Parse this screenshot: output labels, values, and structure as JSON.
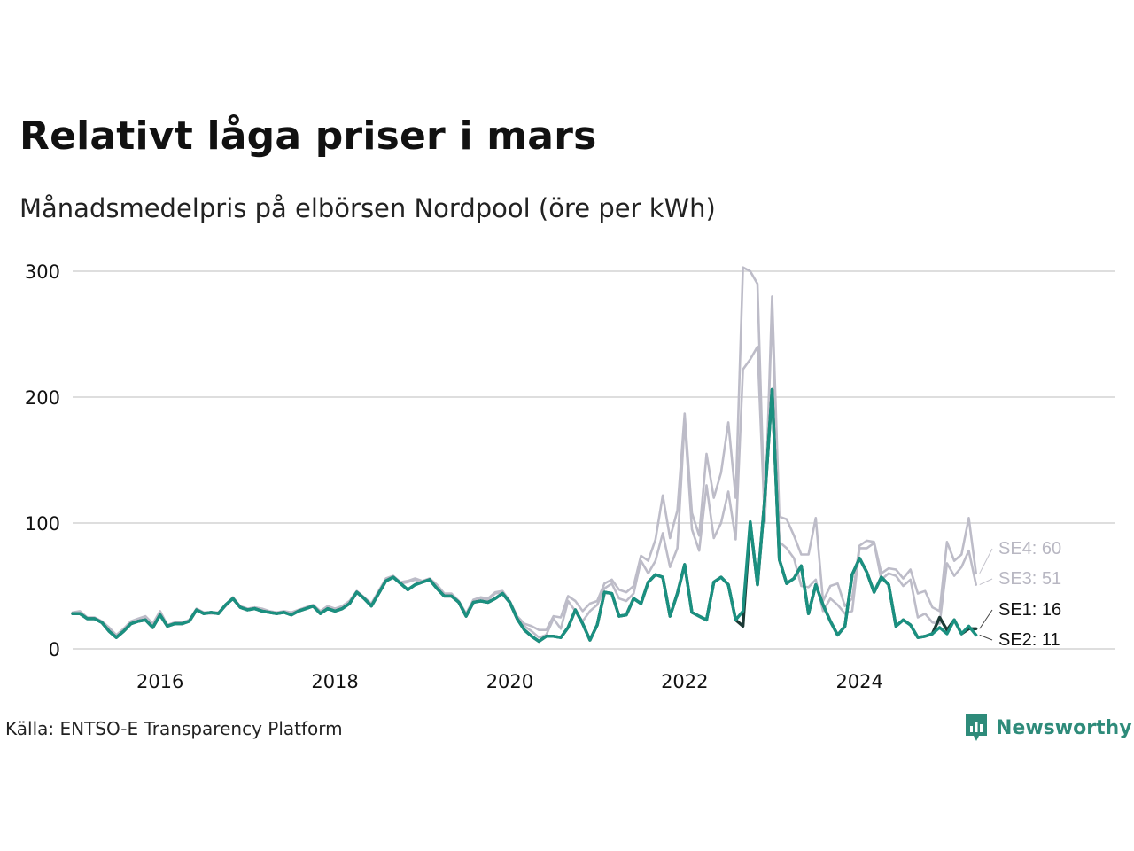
{
  "title": "Relativt låga priser i mars",
  "subtitle": "Månadsmedelpris på elbörsen Nordpool (öre per kWh)",
  "source": "Källa: ENTSO-E Transparency Platform",
  "brand": "Newsworthy",
  "colors": {
    "accent": "#1a9080",
    "dark": "#1c3a35",
    "muted": "#bdbcc8",
    "grid": "#dedede"
  },
  "chart_data": {
    "type": "line",
    "title": "Relativt låga priser i mars",
    "subtitle": "Månadsmedelpris på elbörsen Nordpool (öre per kWh)",
    "xlabel": "",
    "ylabel": "",
    "x_start": "2015-01",
    "x_end": "2025-03",
    "xlim": [
      "2015-01",
      "2026-12"
    ],
    "ylim": [
      0,
      300
    ],
    "x_ticks": [
      "2016",
      "2018",
      "2020",
      "2022",
      "2024"
    ],
    "y_ticks": [
      0,
      100,
      200,
      300
    ],
    "grid": true,
    "legend": "direct-labels-right",
    "series": [
      {
        "name": "SE4",
        "label": "SE4: 60",
        "color": "#bdbcc8",
        "values": [
          29,
          30,
          25,
          25,
          22,
          17,
          11,
          16,
          22,
          24,
          26,
          20,
          30,
          19,
          21,
          21,
          23,
          32,
          29,
          29,
          29,
          35,
          41,
          34,
          32,
          33,
          32,
          30,
          29,
          30,
          29,
          31,
          33,
          35,
          30,
          34,
          32,
          34,
          38,
          46,
          41,
          36,
          46,
          56,
          58,
          53,
          54,
          56,
          54,
          56,
          51,
          44,
          44,
          38,
          28,
          39,
          41,
          40,
          45,
          46,
          38,
          26,
          20,
          18,
          15,
          15,
          26,
          25,
          42,
          38,
          30,
          36,
          38,
          52,
          55,
          47,
          45,
          50,
          74,
          70,
          87,
          122,
          88,
          110,
          187,
          108,
          90,
          155,
          120,
          140,
          180,
          120,
          303,
          300,
          290,
          100,
          280,
          105,
          103,
          90,
          75,
          75,
          104,
          38,
          50,
          52,
          34,
          40,
          82,
          86,
          85,
          60,
          64,
          63,
          56,
          63,
          44,
          46,
          33,
          30,
          85,
          70,
          75,
          104,
          60
        ]
      },
      {
        "name": "SE3",
        "label": "SE3: 51",
        "color": "#bdbcc8",
        "values": [
          28,
          29,
          24,
          24,
          21,
          16,
          10,
          15,
          21,
          23,
          25,
          19,
          28,
          18,
          20,
          20,
          22,
          31,
          28,
          28,
          28,
          34,
          40,
          33,
          31,
          32,
          31,
          29,
          28,
          29,
          28,
          30,
          32,
          34,
          29,
          33,
          31,
          33,
          37,
          45,
          40,
          35,
          45,
          55,
          57,
          52,
          53,
          55,
          53,
          55,
          50,
          43,
          43,
          37,
          27,
          38,
          40,
          39,
          44,
          45,
          37,
          25,
          18,
          14,
          9,
          11,
          24,
          16,
          38,
          30,
          22,
          30,
          35,
          48,
          52,
          40,
          38,
          44,
          70,
          60,
          70,
          92,
          65,
          80,
          182,
          95,
          78,
          130,
          88,
          100,
          125,
          87,
          222,
          230,
          240,
          100,
          270,
          85,
          80,
          72,
          50,
          49,
          55,
          30,
          40,
          35,
          28,
          30,
          80,
          80,
          84,
          55,
          60,
          58,
          50,
          55,
          25,
          28,
          21,
          20,
          68,
          58,
          65,
          78,
          51
        ]
      },
      {
        "name": "SE1",
        "label": "SE1: 16",
        "color": "#1c3a35",
        "values": [
          28,
          28,
          24,
          24,
          21,
          14,
          9,
          14,
          20,
          22,
          23,
          17,
          27,
          18,
          20,
          20,
          22,
          31,
          28,
          29,
          28,
          35,
          40,
          33,
          31,
          32,
          30,
          29,
          28,
          29,
          27,
          30,
          32,
          34,
          28,
          32,
          30,
          32,
          36,
          45,
          40,
          34,
          44,
          54,
          57,
          52,
          47,
          51,
          53,
          55,
          48,
          42,
          42,
          37,
          26,
          37,
          38,
          37,
          40,
          44,
          37,
          24,
          15,
          10,
          6,
          10,
          10,
          9,
          17,
          31,
          20,
          7,
          19,
          45,
          44,
          26,
          27,
          40,
          36,
          53,
          59,
          57,
          26,
          44,
          67,
          29,
          26,
          23,
          53,
          57,
          51,
          23,
          18,
          100,
          51,
          120,
          206,
          71,
          52,
          56,
          66,
          28,
          51,
          35,
          22,
          11,
          18,
          59,
          72,
          61,
          45,
          57,
          51,
          18,
          23,
          19,
          9,
          10,
          12,
          25,
          15,
          23,
          12,
          16,
          16
        ]
      },
      {
        "name": "SE2",
        "label": "SE2: 11",
        "color": "#1a9080",
        "values": [
          28,
          28,
          24,
          24,
          21,
          14,
          9,
          14,
          20,
          22,
          23,
          17,
          27,
          18,
          20,
          20,
          22,
          31,
          28,
          29,
          28,
          35,
          40,
          33,
          31,
          32,
          30,
          29,
          28,
          29,
          27,
          30,
          32,
          34,
          28,
          32,
          30,
          32,
          36,
          45,
          40,
          34,
          44,
          54,
          57,
          52,
          47,
          51,
          53,
          55,
          48,
          42,
          42,
          37,
          26,
          37,
          38,
          37,
          40,
          44,
          37,
          24,
          15,
          10,
          6,
          10,
          10,
          9,
          17,
          31,
          20,
          7,
          19,
          45,
          44,
          26,
          27,
          40,
          36,
          53,
          59,
          57,
          26,
          44,
          67,
          29,
          26,
          23,
          53,
          57,
          51,
          23,
          30,
          101,
          51,
          120,
          206,
          71,
          52,
          56,
          66,
          28,
          51,
          35,
          22,
          11,
          18,
          59,
          72,
          61,
          45,
          57,
          51,
          18,
          23,
          19,
          9,
          10,
          12,
          17,
          12,
          23,
          12,
          18,
          11
        ]
      }
    ]
  }
}
